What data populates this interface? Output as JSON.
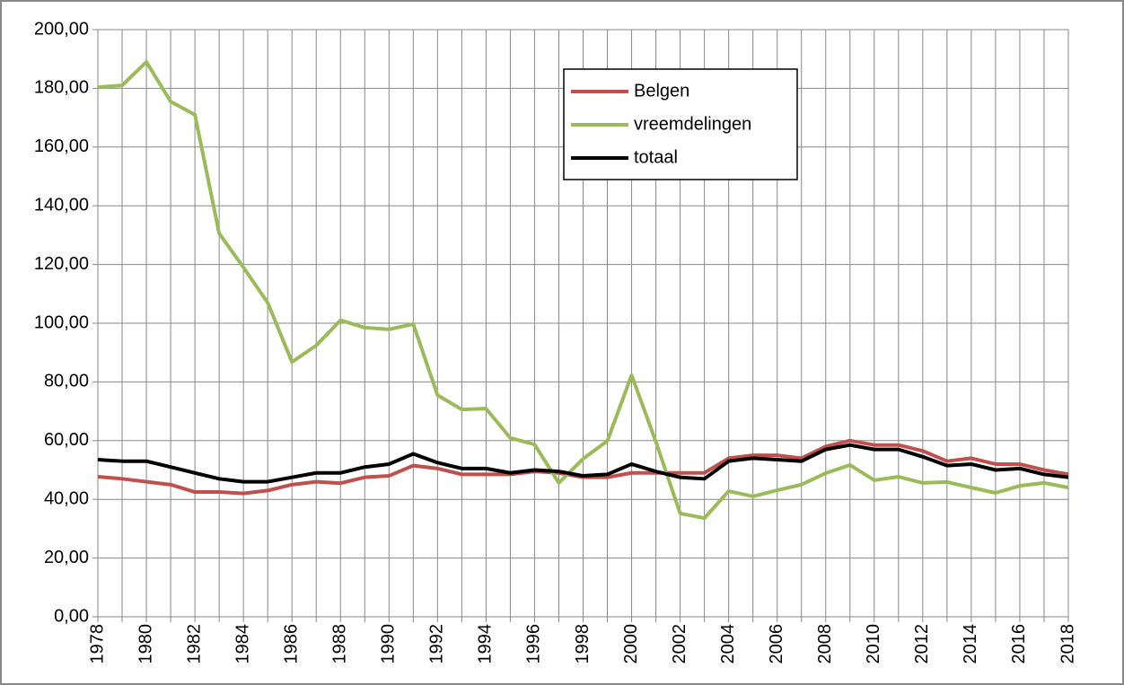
{
  "chart_data": {
    "type": "line",
    "categories": [
      "1978",
      null,
      "1980",
      null,
      "1982",
      null,
      "1984",
      null,
      "1986",
      null,
      "1988",
      null,
      "1990",
      null,
      "1992",
      null,
      "1994",
      null,
      "1996",
      null,
      "1998",
      null,
      "2000",
      null,
      "2002",
      null,
      "2004",
      null,
      "2006",
      null,
      "2008",
      null,
      "2010",
      null,
      "2012",
      null,
      "2014",
      null,
      "2016",
      null,
      "2018"
    ],
    "series": [
      {
        "name": "Belgen",
        "color": "#c0504d",
        "values": [
          47.7,
          47,
          46,
          45,
          42.5,
          42.5,
          42,
          43,
          45,
          46,
          45.5,
          47.5,
          48,
          51.5,
          50.5,
          48.5,
          48.5,
          48.5,
          49.5,
          49,
          47.5,
          47.5,
          49,
          49,
          49,
          49,
          54,
          55,
          55,
          54,
          58,
          60,
          58.5,
          58.5,
          56.5,
          53,
          54,
          52,
          52,
          50,
          48.5
        ]
      },
      {
        "name": "vreemdelingen",
        "color": "#9bbb59",
        "values": [
          180.4,
          181,
          189,
          175.5,
          171,
          130.6,
          119,
          107,
          86.8,
          92.4,
          101,
          98.5,
          97.9,
          99.7,
          75.5,
          70.6,
          70.9,
          60.9,
          58.7,
          45.6,
          53.8,
          59.9,
          82.3,
          59.6,
          35.2,
          33.6,
          42.8,
          41,
          43.1,
          45,
          48.9,
          51.7,
          46.5,
          47.7,
          45.6,
          45.9,
          44,
          42.2,
          44.6,
          45.6,
          44
        ]
      },
      {
        "name": "totaal",
        "color": "#000000",
        "values": [
          53.5,
          53,
          53,
          51,
          49,
          47,
          46,
          46,
          47.5,
          49,
          49,
          51,
          52,
          55.5,
          52.5,
          50.5,
          50.5,
          49,
          50,
          49.5,
          48,
          48.5,
          52,
          49.5,
          47.5,
          47,
          53,
          54,
          53.5,
          53,
          57,
          58.5,
          57,
          57,
          54.5,
          51.5,
          52,
          50,
          50.5,
          48.5,
          47.5
        ]
      }
    ],
    "ylim": [
      0,
      200
    ],
    "yticks": [
      {
        "value": 0,
        "label": "0,00"
      },
      {
        "value": 20,
        "label": "20,00"
      },
      {
        "value": 40,
        "label": "40,00"
      },
      {
        "value": 60,
        "label": "60,00"
      },
      {
        "value": 80,
        "label": "80,00"
      },
      {
        "value": 100,
        "label": "100,00"
      },
      {
        "value": 120,
        "label": "120,00"
      },
      {
        "value": 140,
        "label": "140,00"
      },
      {
        "value": 160,
        "label": "160,00"
      },
      {
        "value": 180,
        "label": "180,00"
      },
      {
        "value": 200,
        "label": "200,00"
      }
    ],
    "grid": true,
    "legend": "top"
  }
}
